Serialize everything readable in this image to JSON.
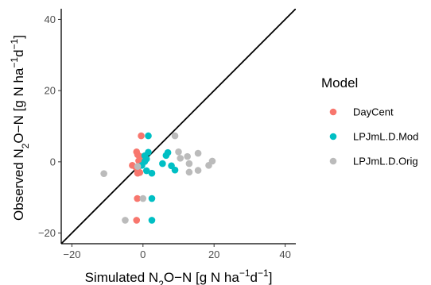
{
  "chart_data": {
    "type": "scatter",
    "title": "",
    "xlabel": {
      "parts": [
        {
          "text": "Simulated N"
        },
        {
          "text": "2",
          "sub": true
        },
        {
          "text": "O−N [g N ha"
        },
        {
          "text": "−1",
          "sup": true
        },
        {
          "text": "d"
        },
        {
          "text": "−1",
          "sup": true
        },
        {
          "text": "]"
        }
      ]
    },
    "ylabel": {
      "parts": [
        {
          "text": "Observed N"
        },
        {
          "text": "2",
          "sub": true
        },
        {
          "text": "O−N [g N ha"
        },
        {
          "text": "−1",
          "sup": true
        },
        {
          "text": "d"
        },
        {
          "text": "−1",
          "sup": true
        },
        {
          "text": "]"
        }
      ]
    },
    "xlim": [
      -23,
      43
    ],
    "ylim": [
      -23,
      43
    ],
    "xticks": [
      -20,
      0,
      20,
      40
    ],
    "yticks": [
      -20,
      0,
      20,
      40
    ],
    "xtick_labels": [
      "−20",
      "0",
      "20",
      "40"
    ],
    "ytick_labels": [
      "−20",
      "0",
      "20",
      "40"
    ],
    "reference_line": "1:1",
    "grid": false,
    "legend": {
      "title": "Model",
      "placement": "right"
    },
    "series": [
      {
        "name": "DayCent",
        "color": "#F8766D",
        "points": [
          [
            -0.5,
            7.3
          ],
          [
            -1.8,
            2.8
          ],
          [
            -1.5,
            2.0
          ],
          [
            -0.8,
            1.5
          ],
          [
            -1.2,
            0.3
          ],
          [
            -0.5,
            0.0
          ],
          [
            -3.0,
            -1.0
          ],
          [
            -2.0,
            -1.5
          ],
          [
            -1.5,
            -2.3
          ],
          [
            -0.9,
            -3.0
          ],
          [
            -1.5,
            -3.2
          ],
          [
            -1.6,
            -10.3
          ],
          [
            -1.8,
            -16.4
          ]
        ]
      },
      {
        "name": "LPJmL.D.Mod",
        "color": "#00BFC4",
        "points": [
          [
            1.5,
            7.3
          ],
          [
            1.5,
            2.7
          ],
          [
            7.0,
            2.6
          ],
          [
            6.5,
            1.8
          ],
          [
            0.5,
            1.7
          ],
          [
            1.0,
            0.8
          ],
          [
            0.5,
            0.1
          ],
          [
            5.5,
            -0.5
          ],
          [
            -0.3,
            -1.0
          ],
          [
            8.0,
            -1.1
          ],
          [
            9.0,
            -2.3
          ],
          [
            1.0,
            -2.5
          ],
          [
            2.5,
            -3.2
          ],
          [
            2.5,
            -10.3
          ],
          [
            2.5,
            -16.4
          ]
        ]
      },
      {
        "name": "LPJmL.D.Orig",
        "color": "#BBBBBB",
        "points": [
          [
            9.0,
            7.3
          ],
          [
            10.0,
            2.8
          ],
          [
            15.5,
            2.4
          ],
          [
            12.5,
            1.5
          ],
          [
            10.5,
            1.0
          ],
          [
            19.5,
            0.2
          ],
          [
            13.0,
            -0.5
          ],
          [
            18.5,
            -1.0
          ],
          [
            -1.5,
            -1.3
          ],
          [
            15.5,
            -2.4
          ],
          [
            13.0,
            -2.9
          ],
          [
            -11.0,
            -3.3
          ],
          [
            0.0,
            -10.3
          ],
          [
            -5.0,
            -16.4
          ]
        ]
      }
    ]
  }
}
